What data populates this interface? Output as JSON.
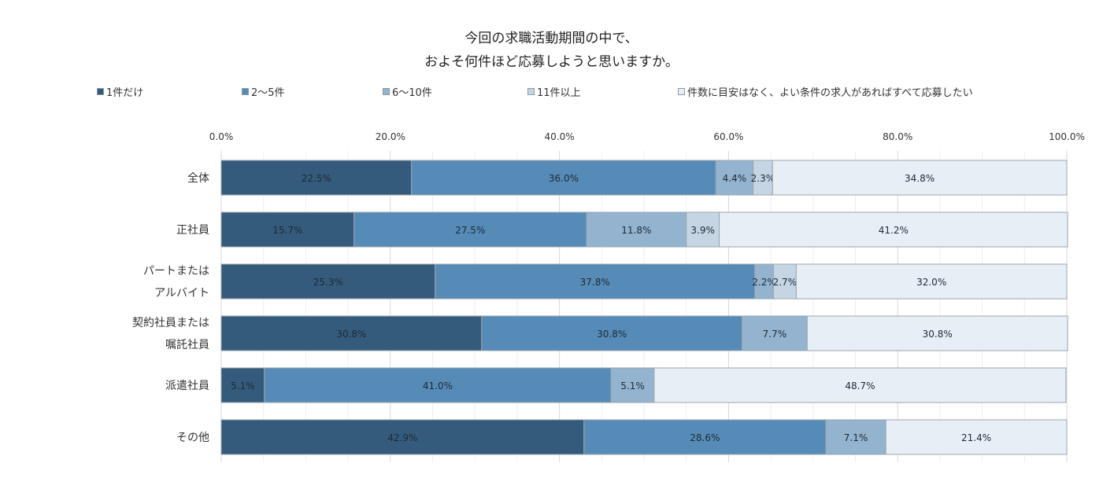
{
  "chart_data": {
    "type": "bar",
    "orientation": "horizontal",
    "stacked": "percent",
    "title": [
      "今回の求職活動期間の中で、",
      "およそ何件ほど応募しようと思いますか。"
    ],
    "categories": [
      "全体",
      "正社員",
      "パートまたは\nアルバイト",
      "契約社員または\n嘱託社員",
      "派遣社員",
      "その他"
    ],
    "xlim": [
      0,
      100
    ],
    "x_ticks": [
      "0.0%",
      "20.0%",
      "40.0%",
      "60.0%",
      "80.0%",
      "100.0%"
    ],
    "grid": true,
    "legend_position": "top",
    "series": [
      {
        "name": "1件だけ",
        "color": "#345b7c",
        "values": [
          22.5,
          15.7,
          25.3,
          30.8,
          5.1,
          42.9
        ]
      },
      {
        "name": "2〜5件",
        "color": "#568bb8",
        "values": [
          36.0,
          27.5,
          37.8,
          30.8,
          41.0,
          28.6
        ]
      },
      {
        "name": "6〜10件",
        "color": "#93b3cf",
        "values": [
          4.4,
          11.8,
          2.2,
          7.7,
          5.1,
          7.1
        ]
      },
      {
        "name": "11件以上",
        "color": "#c5d5e3",
        "values": [
          2.3,
          3.9,
          2.7,
          0.0,
          0.0,
          0.0
        ]
      },
      {
        "name": "件数に目安はなく、よい条件の求人があればすべて応募したい",
        "color": "#e8eef5",
        "values": [
          34.8,
          41.2,
          32.0,
          30.8,
          48.7,
          21.4
        ]
      }
    ]
  }
}
